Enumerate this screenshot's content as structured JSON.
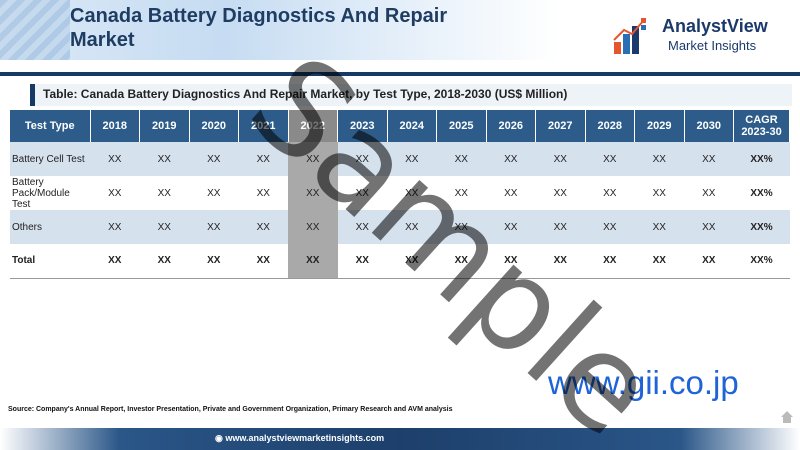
{
  "header": {
    "title": "Canada Battery Diagnostics And Repair Market",
    "logo_name": "AnalystView",
    "logo_sub": "Market Insights"
  },
  "table": {
    "title": "Table: Canada Battery Diagnostics And Repair Market, by Test Type, 2018-2030 (US$ Million)",
    "columns": [
      "Test Type",
      "2018",
      "2019",
      "2020",
      "2021",
      "2022",
      "2023",
      "2024",
      "2025",
      "2026",
      "2027",
      "2028",
      "2029",
      "2030",
      "CAGR 2023-30"
    ],
    "rows": [
      {
        "label": "Battery Cell Test",
        "values": [
          "XX",
          "XX",
          "XX",
          "XX",
          "XX",
          "XX",
          "XX",
          "XX",
          "XX",
          "XX",
          "XX",
          "XX",
          "XX"
        ],
        "cagr": "XX%"
      },
      {
        "label": "Battery Pack/Module Test",
        "values": [
          "XX",
          "XX",
          "XX",
          "XX",
          "XX",
          "XX",
          "XX",
          "XX",
          "XX",
          "XX",
          "XX",
          "XX",
          "XX"
        ],
        "cagr": "XX%"
      },
      {
        "label": "Others",
        "values": [
          "XX",
          "XX",
          "XX",
          "XX",
          "XX",
          "XX",
          "XX",
          "XX",
          "XX",
          "XX",
          "XX",
          "XX",
          "XX"
        ],
        "cagr": "XX%"
      },
      {
        "label": "Total",
        "values": [
          "XX",
          "XX",
          "XX",
          "XX",
          "XX",
          "XX",
          "XX",
          "XX",
          "XX",
          "XX",
          "XX",
          "XX",
          "XX"
        ],
        "cagr": "XX%"
      }
    ]
  },
  "source": "Source: Company's Annual Report, Investor Presentation, Private and Government Organization, Primary Research and AVM analysis",
  "footer_url": "www.analystviewmarketinsights.com",
  "gii_text": "www.gii.co.jp",
  "watermark": "Sample",
  "colors": {
    "header_fill": "#2d5c8a",
    "row_shade": "#d6e1ee",
    "highlight_column": "#a9a9a9",
    "brand_navy": "#163a66",
    "gii_blue": "#1f64d6"
  },
  "icons": [
    "analystview-logo-icon",
    "home-icon",
    "globe-icon"
  ]
}
